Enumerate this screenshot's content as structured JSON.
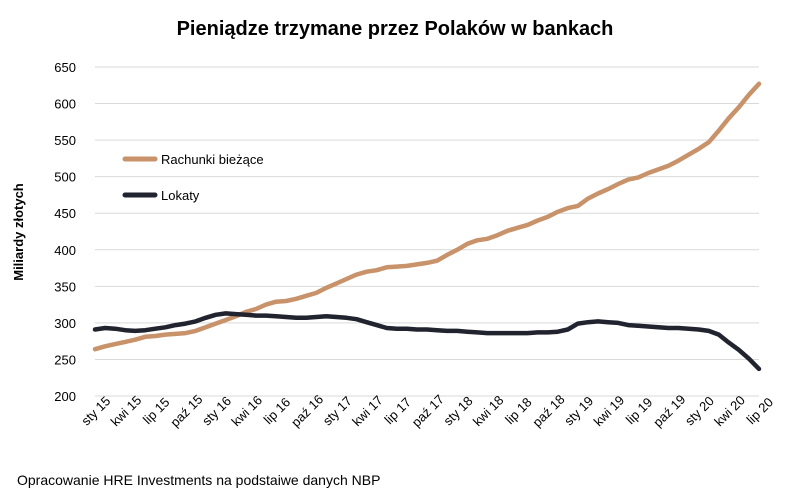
{
  "chart_data": {
    "type": "line",
    "title": "Pieniądze trzymane przez Polaków w bankach",
    "xlabel": "",
    "ylabel": "Miliardy złotych",
    "ylim": [
      200,
      650
    ],
    "yticks": [
      200,
      250,
      300,
      350,
      400,
      450,
      500,
      550,
      600,
      650
    ],
    "x_tick_labels": [
      "sty 15",
      "kwi 15",
      "lip 15",
      "paź 15",
      "sty 16",
      "kwi 16",
      "lip 16",
      "paź 16",
      "sty 17",
      "kwi 17",
      "lip 17",
      "paź 17",
      "sty 18",
      "kwi 18",
      "lip 18",
      "paź 18",
      "sty 19",
      "kwi 19",
      "lip 19",
      "paź 19",
      "sty 20",
      "kwi 20",
      "lip 20"
    ],
    "x_months": [
      "2015-01",
      "2015-02",
      "2015-03",
      "2015-04",
      "2015-05",
      "2015-06",
      "2015-07",
      "2015-08",
      "2015-09",
      "2015-10",
      "2015-11",
      "2015-12",
      "2016-01",
      "2016-02",
      "2016-03",
      "2016-04",
      "2016-05",
      "2016-06",
      "2016-07",
      "2016-08",
      "2016-09",
      "2016-10",
      "2016-11",
      "2016-12",
      "2017-01",
      "2017-02",
      "2017-03",
      "2017-04",
      "2017-05",
      "2017-06",
      "2017-07",
      "2017-08",
      "2017-09",
      "2017-10",
      "2017-11",
      "2017-12",
      "2018-01",
      "2018-02",
      "2018-03",
      "2018-04",
      "2018-05",
      "2018-06",
      "2018-07",
      "2018-08",
      "2018-09",
      "2018-10",
      "2018-11",
      "2018-12",
      "2019-01",
      "2019-02",
      "2019-03",
      "2019-04",
      "2019-05",
      "2019-06",
      "2019-07",
      "2019-08",
      "2019-09",
      "2019-10",
      "2019-11",
      "2019-12",
      "2020-01",
      "2020-02",
      "2020-03",
      "2020-04",
      "2020-05",
      "2020-06",
      "2020-07"
    ],
    "grid": true,
    "legend_position": "left",
    "series": [
      {
        "name": "Rachunki bieżące",
        "color": "#c8926a",
        "values": [
          264,
          268,
          271,
          274,
          277,
          281,
          282,
          284,
          285,
          286,
          289,
          294,
          299,
          304,
          309,
          315,
          319,
          325,
          329,
          330,
          333,
          337,
          341,
          348,
          354,
          360,
          366,
          370,
          372,
          376,
          377,
          378,
          380,
          382,
          385,
          393,
          400,
          408,
          413,
          415,
          420,
          426,
          430,
          434,
          440,
          445,
          452,
          457,
          460,
          470,
          477,
          483,
          490,
          496,
          499,
          505,
          510,
          515,
          522,
          530,
          538,
          547,
          563,
          580,
          595,
          612,
          627
        ]
      },
      {
        "name": "Lokaty",
        "color": "#21232f",
        "values": [
          291,
          293,
          292,
          290,
          289,
          290,
          292,
          294,
          297,
          299,
          302,
          307,
          311,
          313,
          312,
          311,
          310,
          310,
          309,
          308,
          307,
          307,
          308,
          309,
          308,
          307,
          305,
          301,
          297,
          293,
          292,
          292,
          291,
          291,
          290,
          289,
          289,
          288,
          287,
          286,
          286,
          286,
          286,
          286,
          287,
          287,
          288,
          291,
          299,
          301,
          302,
          301,
          300,
          297,
          296,
          295,
          294,
          293,
          293,
          292,
          291,
          289,
          284,
          273,
          263,
          251,
          237
        ]
      }
    ]
  },
  "source_note": "Opracowanie HRE Investments na podstaiwe danych NBP"
}
